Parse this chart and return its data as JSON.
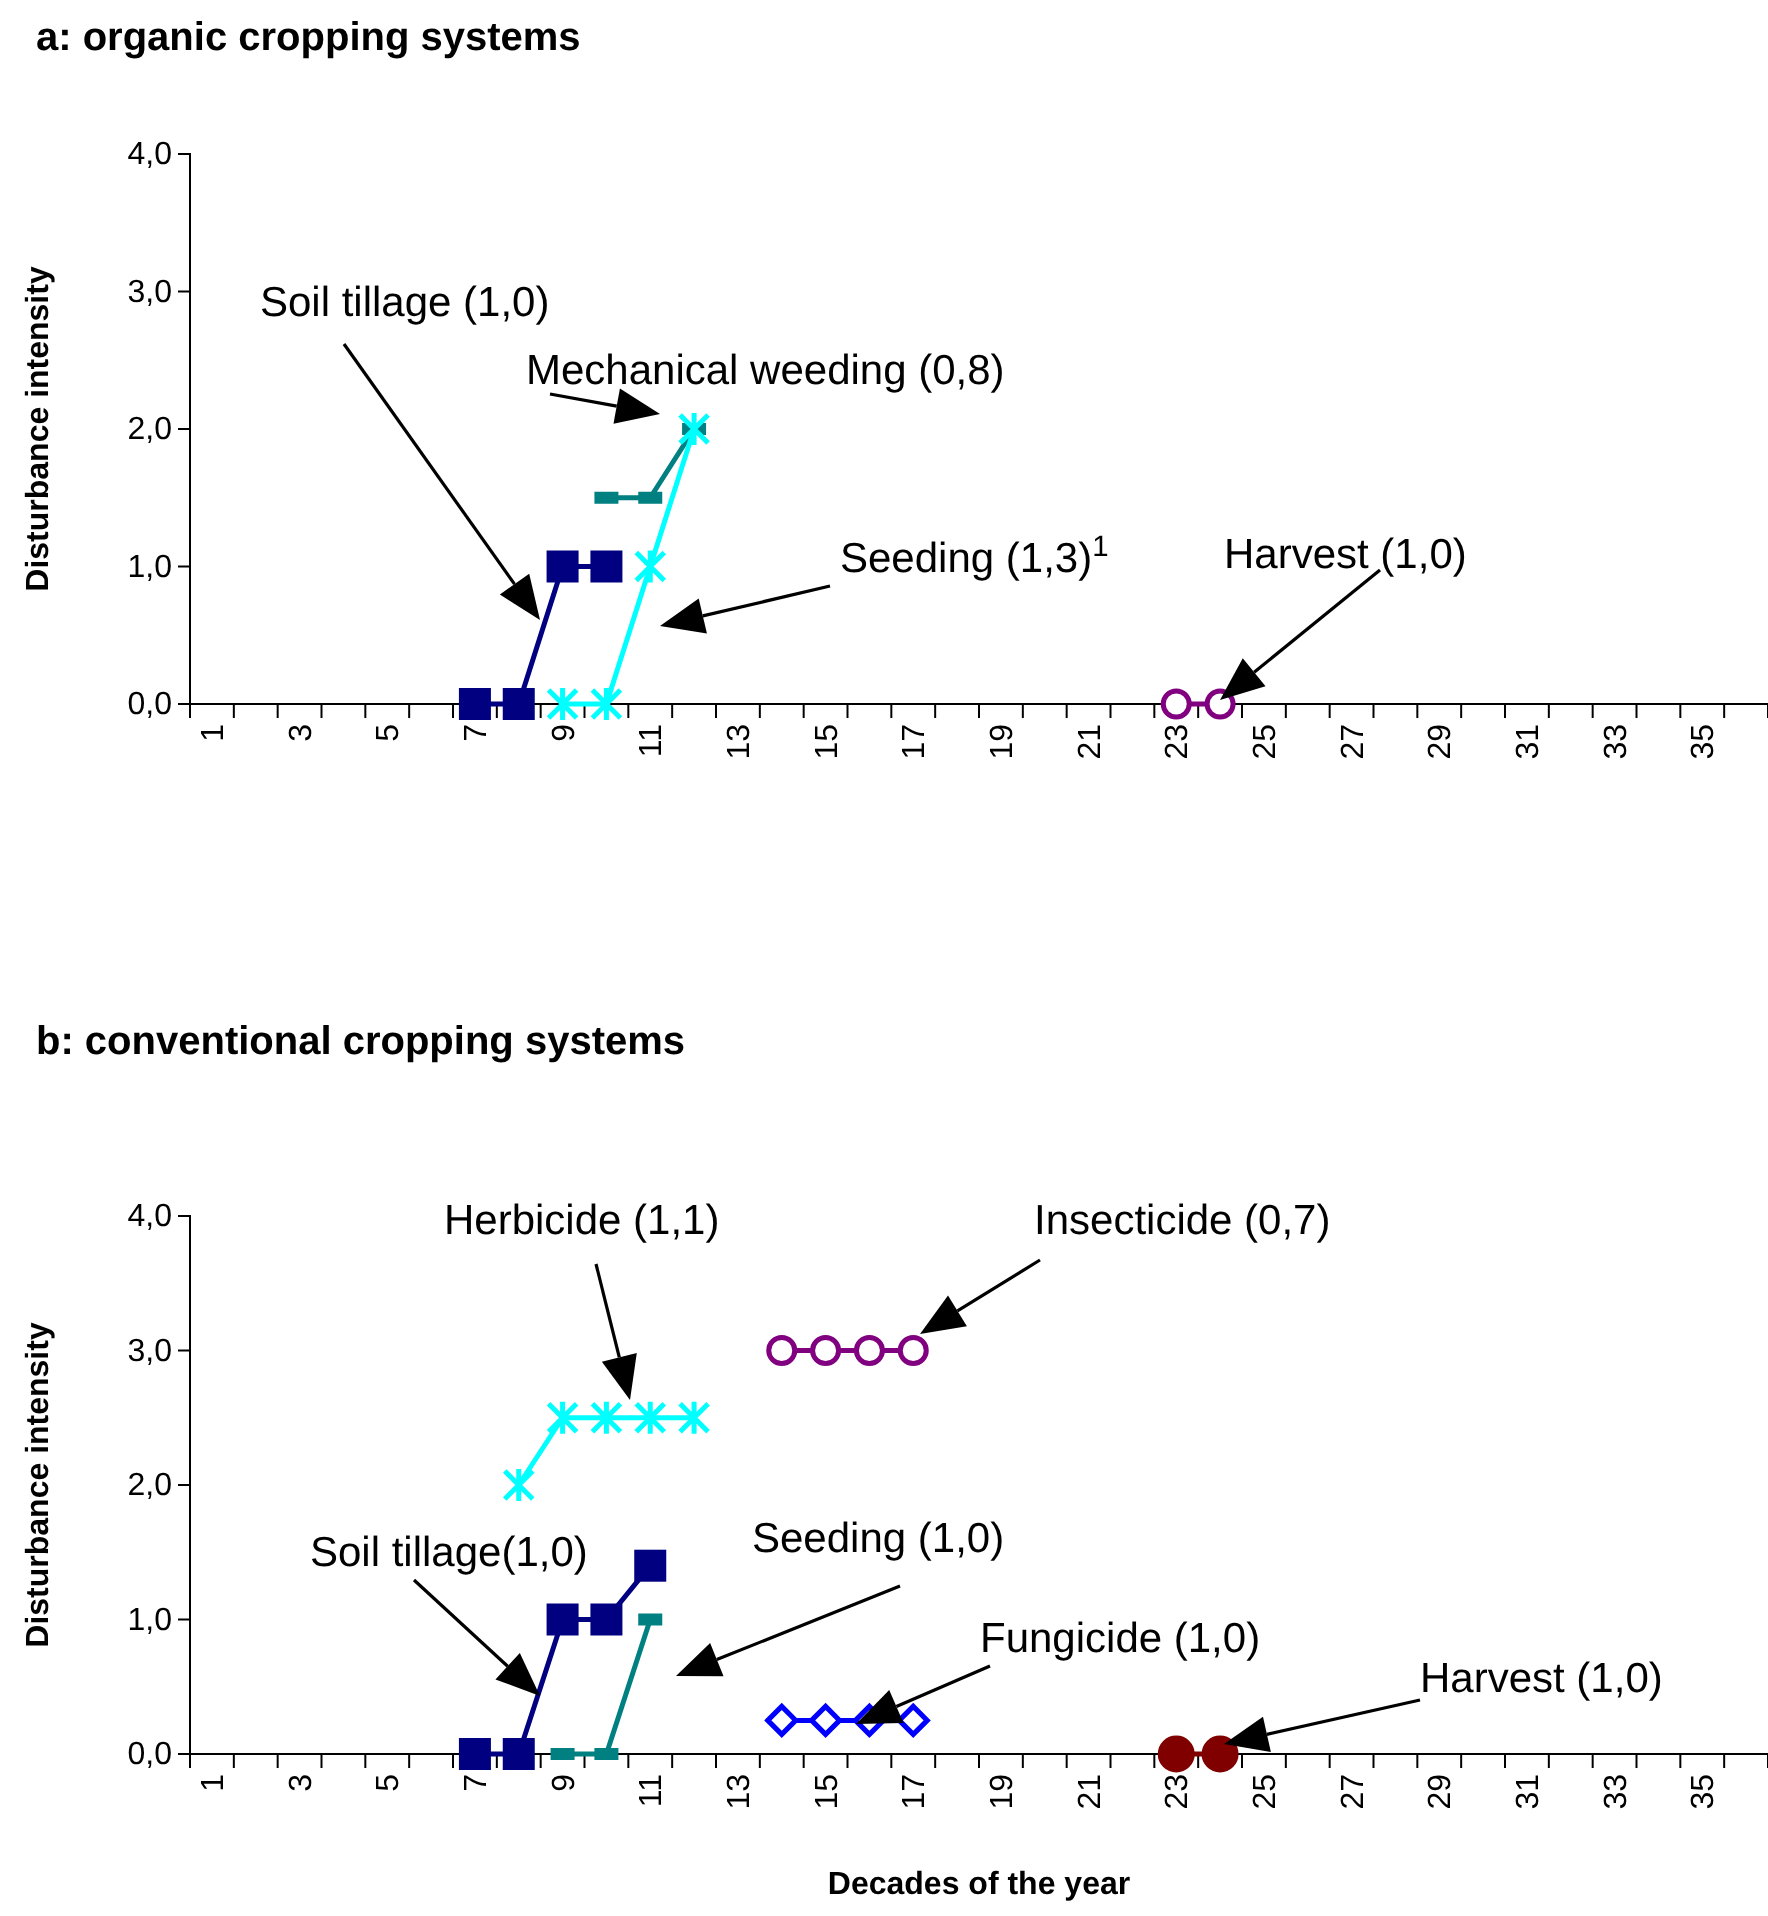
{
  "chart_data": [
    {
      "type": "line",
      "title": "a: organic cropping systems",
      "ylabel": "Disturbance intensity",
      "categories": [
        "1",
        null,
        "3",
        null,
        "5",
        null,
        "7",
        null,
        "9",
        null,
        "11",
        null,
        "13",
        null,
        "15",
        null,
        "17",
        null,
        "19",
        null,
        "21",
        null,
        "23",
        null,
        "25",
        null,
        "27",
        null,
        "29",
        null,
        "31",
        null,
        "33",
        null,
        "35",
        null
      ],
      "ylim": [
        0,
        4
      ],
      "yticks": [
        {
          "value": 0,
          "label": "0,0"
        },
        {
          "value": 1,
          "label": "1,0"
        },
        {
          "value": 2,
          "label": "2,0"
        },
        {
          "value": 3,
          "label": "3,0"
        },
        {
          "value": 4,
          "label": "4,0"
        }
      ],
      "grid": false,
      "annotations": [
        "Soil tillage (1,0)",
        "Mechanical weeding (0,8)",
        "Seeding (1,3)$^{1}$",
        "Harvest (1,0)"
      ],
      "series": [
        {
          "color": "#000080",
          "marker": "square",
          "values": [
            null,
            null,
            null,
            null,
            null,
            null,
            0,
            0,
            1,
            1,
            null,
            null,
            null,
            null,
            null,
            null,
            null,
            null,
            null,
            null,
            null,
            null,
            null,
            null,
            null,
            null,
            null,
            null,
            null,
            null,
            null,
            null,
            null,
            null,
            null,
            null
          ]
        },
        {
          "color": "#008080",
          "marker": "square",
          "values": [
            null,
            null,
            null,
            null,
            null,
            null,
            null,
            null,
            null,
            1.5,
            1.5,
            2,
            null,
            null,
            null,
            null,
            null,
            null,
            null,
            null,
            null,
            null,
            null,
            null,
            null,
            null,
            null,
            null,
            null,
            null,
            null,
            null,
            null,
            null,
            null,
            null
          ]
        },
        {
          "color": "#00ffff",
          "marker": "cross",
          "values": [
            null,
            null,
            null,
            null,
            null,
            null,
            null,
            null,
            0,
            0,
            1,
            2,
            null,
            null,
            null,
            null,
            null,
            null,
            null,
            null,
            null,
            null,
            null,
            null,
            null,
            null,
            null,
            null,
            null,
            null,
            null,
            null,
            null,
            null,
            null,
            null
          ]
        },
        {
          "color": "#800080",
          "marker": "circle",
          "values": [
            null,
            null,
            null,
            null,
            null,
            null,
            null,
            null,
            null,
            null,
            null,
            null,
            null,
            null,
            null,
            null,
            null,
            null,
            null,
            null,
            null,
            null,
            0,
            0,
            null,
            null,
            null,
            null,
            null,
            null,
            null,
            null,
            null,
            null,
            null,
            null
          ]
        }
      ]
    },
    {
      "type": "line",
      "title": "b: conventional cropping systems",
      "ylabel": "Disturbance intensity",
      "xlabel": "Decades of the year",
      "categories": [
        "1",
        null,
        "3",
        null,
        "5",
        null,
        "7",
        null,
        "9",
        null,
        "11",
        null,
        "13",
        null,
        "15",
        null,
        "17",
        null,
        "19",
        null,
        "21",
        null,
        "23",
        null,
        "25",
        null,
        "27",
        null,
        "29",
        null,
        "31",
        null,
        "33",
        null,
        "35",
        null
      ],
      "ylim": [
        0,
        4
      ],
      "yticks": [
        {
          "value": 0,
          "label": "0,0"
        },
        {
          "value": 1,
          "label": "1,0"
        },
        {
          "value": 2,
          "label": "2,0"
        },
        {
          "value": 3,
          "label": "3,0"
        },
        {
          "value": 4,
          "label": "4,0"
        }
      ],
      "grid": false,
      "annotations": [
        "Herbicide (1,1)",
        "Insecticide (0,7)",
        "Soil tillage(1,0)",
        "Seeding (1,0)",
        "Fungicide (1,0)",
        "Harvest (1,0)"
      ],
      "series": [
        {
          "color": "#00ffff",
          "marker": "cross",
          "values": [
            null,
            null,
            null,
            null,
            null,
            null,
            null,
            2,
            2.5,
            2.5,
            2.5,
            2.5,
            null,
            null,
            null,
            null,
            null,
            null,
            null,
            null,
            null,
            null,
            null,
            null,
            null,
            null,
            null,
            null,
            null,
            null,
            null,
            null,
            null,
            null,
            null,
            null
          ]
        },
        {
          "color": "#800080",
          "marker": "circle",
          "values": [
            null,
            null,
            null,
            null,
            null,
            null,
            null,
            null,
            null,
            null,
            null,
            null,
            null,
            3,
            3,
            3,
            3,
            null,
            null,
            null,
            null,
            null,
            null,
            null,
            null,
            null,
            null,
            null,
            null,
            null,
            null,
            null,
            null,
            null,
            null,
            null
          ]
        },
        {
          "color": "#000080",
          "marker": "square",
          "values": [
            null,
            null,
            null,
            null,
            null,
            null,
            0,
            0,
            1,
            1,
            1.4,
            null,
            null,
            null,
            null,
            null,
            null,
            null,
            null,
            null,
            null,
            null,
            null,
            null,
            null,
            null,
            null,
            null,
            null,
            null,
            null,
            null,
            null,
            null,
            null,
            null
          ]
        },
        {
          "color": "#008080",
          "marker": "square",
          "values": [
            null,
            null,
            null,
            null,
            null,
            null,
            null,
            null,
            0,
            0,
            1,
            null,
            null,
            null,
            null,
            null,
            null,
            null,
            null,
            null,
            null,
            null,
            null,
            null,
            null,
            null,
            null,
            null,
            null,
            null,
            null,
            null,
            null,
            null,
            null,
            null
          ]
        },
        {
          "color": "#0000ff",
          "marker": "diamond",
          "values": [
            null,
            null,
            null,
            null,
            null,
            null,
            null,
            null,
            null,
            null,
            null,
            null,
            null,
            0.25,
            0.25,
            0.25,
            0.25,
            null,
            null,
            null,
            null,
            null,
            null,
            null,
            null,
            null,
            null,
            null,
            null,
            null,
            null,
            null,
            null,
            null,
            null,
            null
          ]
        },
        {
          "color": "#800000",
          "marker": "circle",
          "values": [
            null,
            null,
            null,
            null,
            null,
            null,
            null,
            null,
            null,
            null,
            null,
            null,
            null,
            null,
            null,
            null,
            null,
            null,
            null,
            null,
            null,
            null,
            0,
            0,
            null,
            null,
            null,
            null,
            null,
            null,
            null,
            null,
            null,
            null,
            null,
            null
          ]
        }
      ]
    }
  ]
}
